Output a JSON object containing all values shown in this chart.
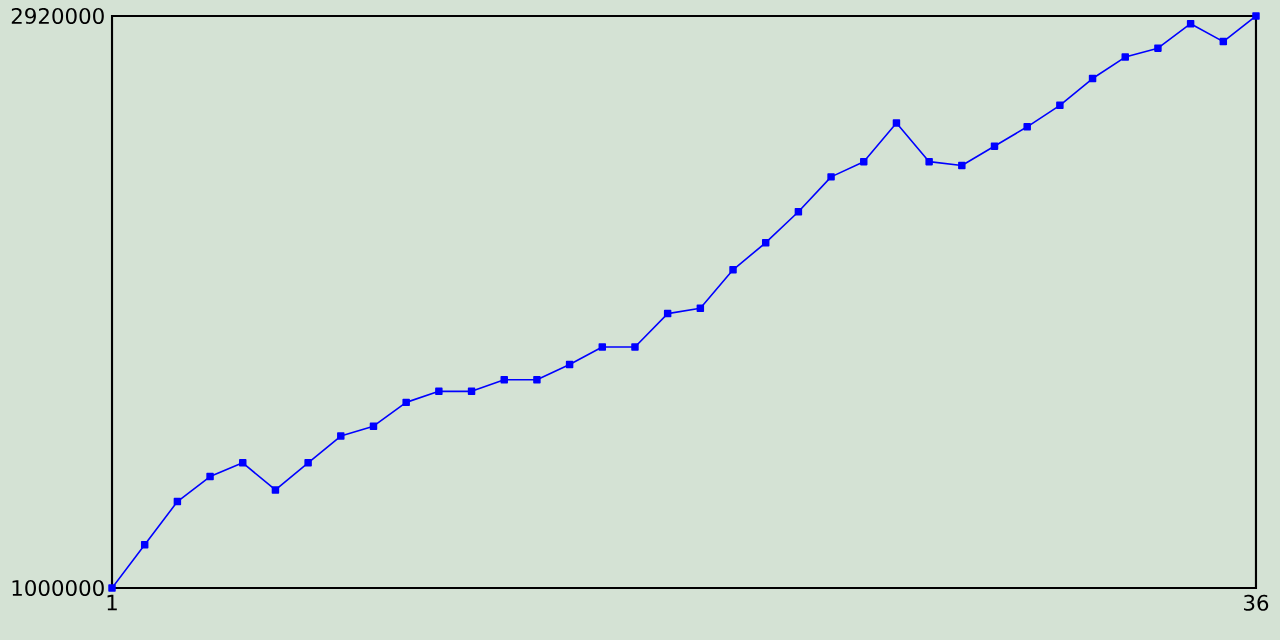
{
  "chart_data": {
    "type": "line",
    "x": [
      1,
      2,
      3,
      4,
      5,
      6,
      7,
      8,
      9,
      10,
      11,
      12,
      13,
      14,
      15,
      16,
      17,
      18,
      19,
      20,
      21,
      22,
      23,
      24,
      25,
      26,
      27,
      28,
      29,
      30,
      31,
      32,
      33,
      34,
      35,
      36
    ],
    "series": [
      {
        "color": "#0000ff",
        "values": [
          1000000,
          1145000,
          1290000,
          1374000,
          1420000,
          1329000,
          1420000,
          1510000,
          1543000,
          1623000,
          1660000,
          1660000,
          1699000,
          1699000,
          1750000,
          1809000,
          1809000,
          1921000,
          1939000,
          2068000,
          2159000,
          2263000,
          2380000,
          2431000,
          2561000,
          2431000,
          2418000,
          2483000,
          2548000,
          2620000,
          2710000,
          2782000,
          2812000,
          2894000,
          2834000,
          2920000
        ]
      }
    ],
    "xlim": [
      1,
      36
    ],
    "ylim": [
      1000000,
      2920000
    ],
    "xticks": [
      1,
      36
    ],
    "yticks": [
      1000000,
      2920000
    ],
    "marker": "square",
    "line_style": "solid"
  }
}
